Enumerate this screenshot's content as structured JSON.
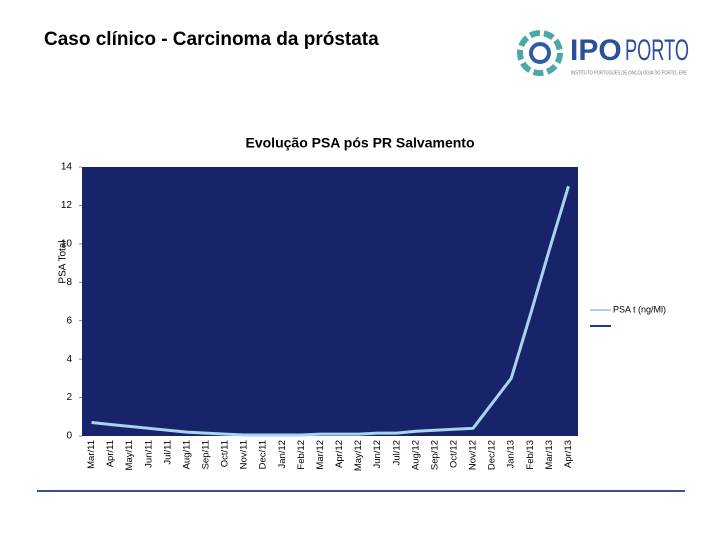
{
  "header": {
    "title": "Caso clínico - Carcinoma da próstata",
    "logo_ipo": "IPO",
    "logo_porto": "PORTO",
    "logo_subtitle": "INSTITUTO PORTUGUÊS DE ONCOLOGIA DO PORTO, EPE"
  },
  "chart_data": {
    "type": "line",
    "title": "Evolução PSA  pós PR Salvamento",
    "y_label": "PSA Total",
    "categories": [
      "Mar/11",
      "Apr/11",
      "May/11",
      "Jun/11",
      "Jul/11",
      "Aug/11",
      "Sep/11",
      "Oct/11",
      "Nov/11",
      "Dec/11",
      "Jan/12",
      "Feb/12",
      "Mar/12",
      "Apr/12",
      "May/12",
      "Jun/12",
      "Jul/12",
      "Aug/12",
      "Sep/12",
      "Oct/12",
      "Nov/12",
      "Dec/12",
      "Jan/13",
      "Feb/13",
      "Mar/13",
      "Apr/13"
    ],
    "series": [
      {
        "name": "PSA t (ng/Ml)",
        "color": "#a9d3ef",
        "values": [
          0.7,
          0.6,
          0.5,
          0.4,
          0.3,
          0.2,
          0.15,
          0.1,
          0.05,
          0.05,
          0.05,
          0.05,
          0.1,
          0.1,
          0.1,
          0.15,
          0.15,
          0.25,
          0.3,
          0.35,
          0.4,
          1.7,
          3,
          6.3,
          9.7,
          13
        ]
      }
    ],
    "ylim": [
      0,
      14
    ],
    "yticks": [
      0,
      2,
      4,
      6,
      8,
      10,
      12,
      14
    ],
    "plot_color": "#18246a",
    "legend": "right"
  }
}
